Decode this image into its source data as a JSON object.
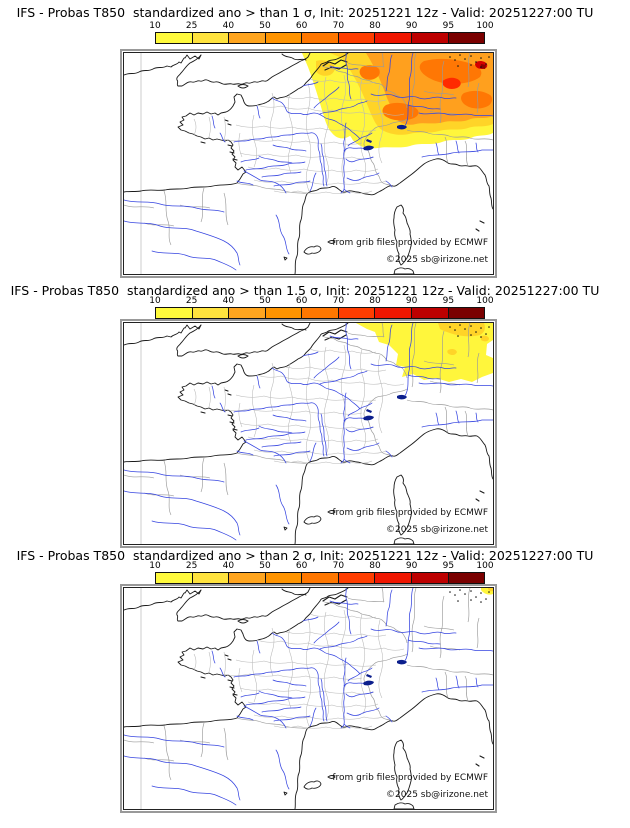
{
  "colorbar": {
    "ticks": [
      "10",
      "25",
      "40",
      "50",
      "60",
      "70",
      "80",
      "90",
      "95",
      "100"
    ],
    "colors": [
      "#FFFA3C",
      "#FFE33E",
      "#FFA51F",
      "#FF9400",
      "#FF7700",
      "#FF3D00",
      "#EF1600",
      "#BD0000",
      "#7A0000"
    ]
  },
  "panels": [
    {
      "title": "IFS - Probas T850  standardized ano > than 1 σ, Init: 20251221 12z - Valid: 20251227:00 TU"
    },
    {
      "title": "IFS - Probas T850  standardized ano > than 1.5 σ, Init: 20251221 12z - Valid: 20251227:00 TU"
    },
    {
      "title": "IFS - Probas T850  standardized ano > than 2 σ, Init: 20251221 12z - Valid: 20251227:00 TU"
    }
  ],
  "map": {
    "credit_line1": "from grib files provided by ECMWF",
    "credit_line2": "©2025 sb@irizone.net"
  },
  "overlay_colors": {
    "yellow": "#FFF63C",
    "gold": "#FFD428",
    "orange": "#FFA01E",
    "deep_orange": "#FF7704",
    "red": "#FF2A00",
    "dark_red": "#D40000",
    "maroon": "#8B0000"
  },
  "chart_data": [
    {
      "type": "heatmap",
      "title": "IFS - Probas T850  standardized ano > than 1 σ, Init: 20251221 12z - Valid: 20251227:00 TU",
      "legend_ticks": [
        10,
        25,
        40,
        50,
        60,
        70,
        80,
        90,
        95,
        100
      ],
      "description": "Probability (%) that T850 standardized anomaly exceeds 1 sigma over France/W-Europe; high values 60-95% over NE France, Belgium, Germany; yellow 10-25% band from Pas-de-Calais through Champagne to Jura; white elsewhere"
    },
    {
      "type": "heatmap",
      "title": "IFS - Probas T850  standardized ano > than 1.5 σ, Init: 20251221 12z - Valid: 20251227:00 TU",
      "legend_ticks": [
        10,
        25,
        40,
        50,
        60,
        70,
        80,
        90,
        95,
        100
      ],
      "description": "Probability 10-25% (yellow) confined to NE corner (Benelux/Germany), small 25-40% (gold) patches at extreme NE; white elsewhere"
    },
    {
      "type": "heatmap",
      "title": "IFS - Probas T850  standardized ano > than 2 σ, Init: 20251221 12z - Valid: 20251227:00 TU",
      "legend_ticks": [
        10,
        25,
        40,
        50,
        60,
        70,
        80,
        90,
        95,
        100
      ],
      "description": "Almost entirely white; tiny 10-25% yellow speck at extreme NE map corner"
    }
  ]
}
